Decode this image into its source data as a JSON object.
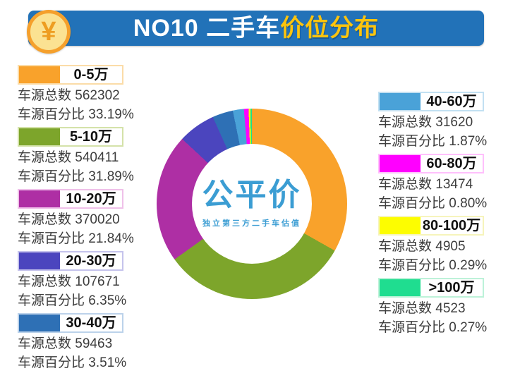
{
  "header": {
    "title_white": "NO10 二手车",
    "title_yellow": "价位分布",
    "coin_symbol": "¥",
    "banner_color": "#2272B8",
    "accent_color": "#FCC40D"
  },
  "watermark": {
    "logo": "公平价",
    "tagline": "独立第三方二手车估值",
    "color": "#3B9DD3"
  },
  "labels": {
    "total_prefix": "车源总数",
    "percent_prefix": "车源百分比"
  },
  "chart_data": {
    "type": "pie",
    "subtype": "donut",
    "title": "NO10 二手车价位分布",
    "start_angle_deg": 0,
    "direction": "clockwise",
    "legend_position": "left-and-right-columns",
    "segments": [
      {
        "label": "0-5万",
        "count": 562302,
        "percent": 33.19,
        "percent_text": "33.19%",
        "color": "#F9A22B",
        "tint": "#FBDCA8"
      },
      {
        "label": "5-10万",
        "count": 540411,
        "percent": 31.89,
        "percent_text": "31.89%",
        "color": "#7DA52B",
        "tint": "#D4E2A9"
      },
      {
        "label": "10-20万",
        "count": 370020,
        "percent": 21.84,
        "percent_text": "21.84%",
        "color": "#AE2FA4",
        "tint": "#EFC0E9"
      },
      {
        "label": "20-30万",
        "count": 107671,
        "percent": 6.35,
        "percent_text": "6.35%",
        "color": "#4B45BE",
        "tint": "#C5C3EC"
      },
      {
        "label": "30-40万",
        "count": 59463,
        "percent": 3.51,
        "percent_text": "3.51%",
        "color": "#2E70B5",
        "tint": "#BCD2EA"
      },
      {
        "label": "40-60万",
        "count": 31620,
        "percent": 1.87,
        "percent_text": "1.87%",
        "color": "#4AA2D8",
        "tint": "#C2E0F2"
      },
      {
        "label": "60-80万",
        "count": 13474,
        "percent": 0.8,
        "percent_text": "0.80%",
        "color": "#FF00FF",
        "tint": "#FFC0FC"
      },
      {
        "label": "80-100万",
        "count": 4905,
        "percent": 0.29,
        "percent_text": "0.29%",
        "color": "#FDFD00",
        "tint": "#F6F4BC"
      },
      {
        "label": ">100万",
        "count": 4523,
        "percent": 0.27,
        "percent_text": "0.27%",
        "color": "#1FDD90",
        "tint": "#BDF2D9"
      }
    ]
  },
  "layout": {
    "legend_left_count": 5
  }
}
